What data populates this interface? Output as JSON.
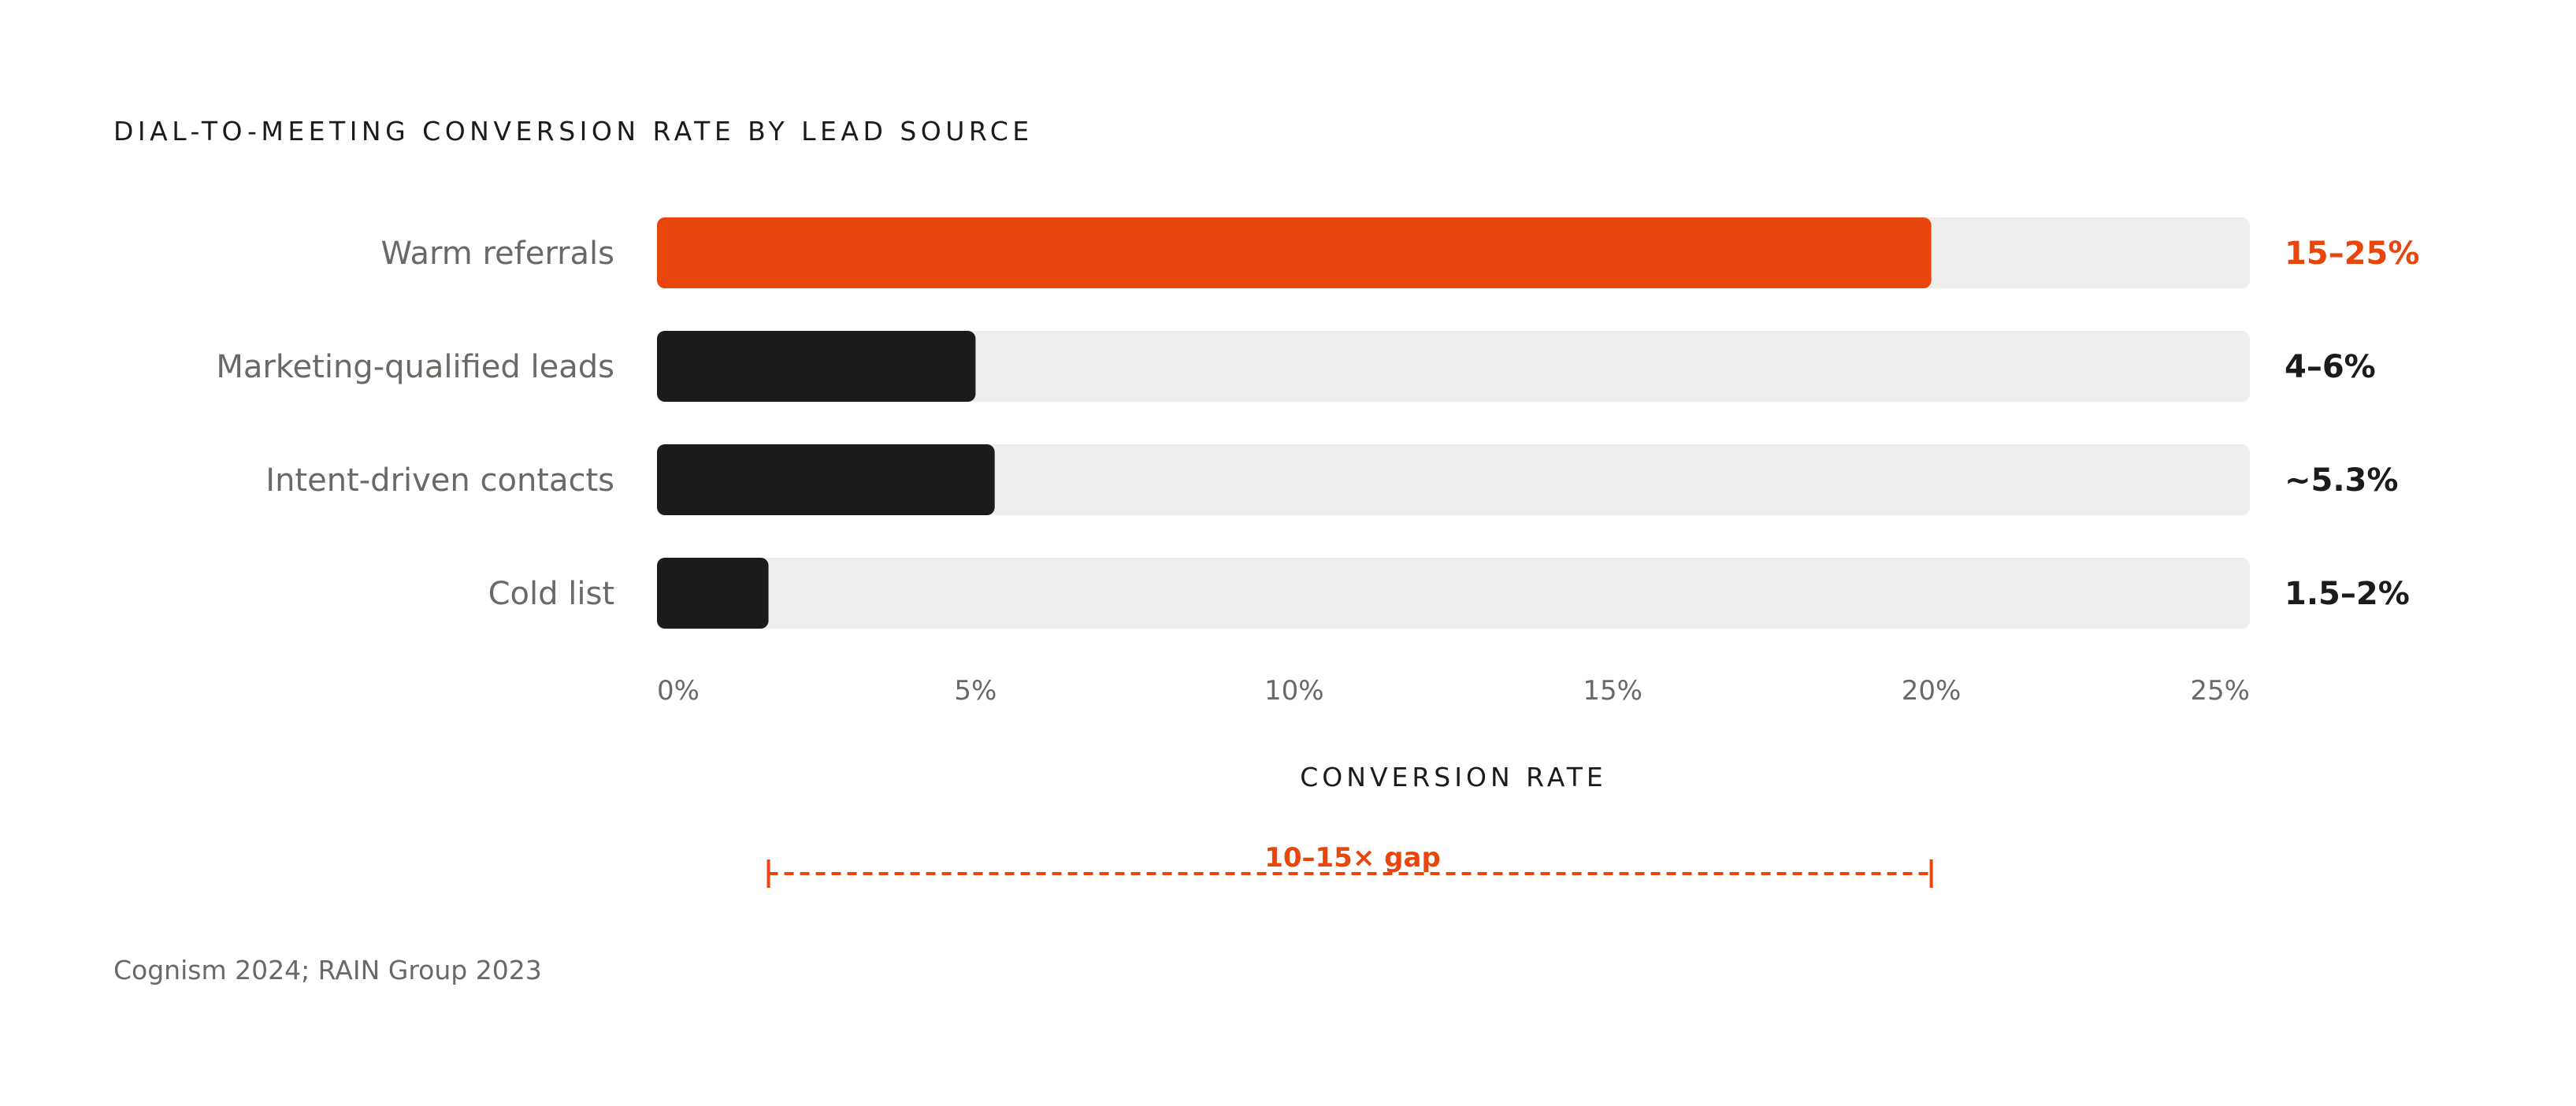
{
  "chart_data": {
    "type": "bar",
    "orientation": "horizontal",
    "title": "DIAL-TO-MEETING CONVERSION RATE BY LEAD SOURCE",
    "xlabel": "CONVERSION RATE",
    "ylabel": "",
    "xlim": [
      0,
      25
    ],
    "x_ticks": [
      0,
      5,
      10,
      15,
      20,
      25
    ],
    "x_tick_labels": [
      "0%",
      "5%",
      "10%",
      "15%",
      "20%",
      "25%"
    ],
    "categories": [
      "Warm referrals",
      "Marketing-qualified leads",
      "Intent-driven contacts",
      "Cold list"
    ],
    "values": [
      20,
      5,
      5.3,
      1.75
    ],
    "value_labels": [
      "15–25%",
      "4–6%",
      "~5.3%",
      "1.5–2%"
    ],
    "highlight": [
      true,
      false,
      false,
      false
    ],
    "grid": false,
    "annotation": {
      "label": "10–15× gap",
      "x_start": 1.75,
      "x_end": 20
    },
    "source": "Cognism 2024; RAIN Group 2023"
  },
  "colors": {
    "highlight": "#E8460C",
    "bar": "#1C1B1A",
    "track": "#EFEEEC",
    "title": "#1C1B1A",
    "category_label": "#6B6966",
    "tick_label": "#6B6966",
    "value_label": "#1C1B1A",
    "source": "#6B6966"
  }
}
